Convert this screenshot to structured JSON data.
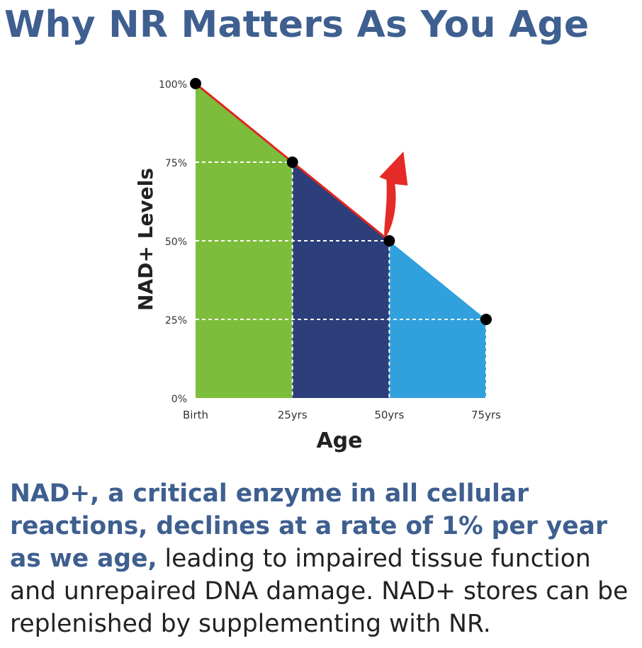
{
  "title": "Why NR Matters As You Age",
  "colors": {
    "title": "#3e5f8f",
    "segment_1": "#7dbd3c",
    "segment_2": "#2c3f7a",
    "segment_3": "#31a1dd",
    "decline_line": "#e0261f",
    "arrow": "#e42b27",
    "points": "#000000"
  },
  "chart_data": {
    "type": "area",
    "title": "",
    "xlabel": "Age",
    "ylabel": "NAD+ Levels",
    "x": [
      "Birth",
      "25yrs",
      "50yrs",
      "75yrs"
    ],
    "x_values": [
      0,
      25,
      50,
      75
    ],
    "y_ticks": [
      "100%",
      "75%",
      "50%",
      "25%",
      "0%"
    ],
    "y_tick_values": [
      100,
      75,
      50,
      25,
      0
    ],
    "ylim": [
      0,
      100
    ],
    "series": [
      {
        "values": [
          100,
          75,
          50,
          25
        ]
      }
    ],
    "segment_colors": [
      "#7dbd3c",
      "#2c3f7a",
      "#31a1dd"
    ],
    "annotations": [
      {
        "type": "arrow",
        "at_x": 50,
        "direction": "up",
        "color": "#e42b27"
      }
    ],
    "grid": "dashed guide lines at 75%, 50%, 25%"
  },
  "description": {
    "highlight": "NAD+, a critical enzyme in all cellular reactions, declines at a rate of 1% per year as we age,",
    "rest": " leading to impaired tissue function and unrepaired DNA damage. NAD+ stores can be replenished by supplementing with NR."
  }
}
